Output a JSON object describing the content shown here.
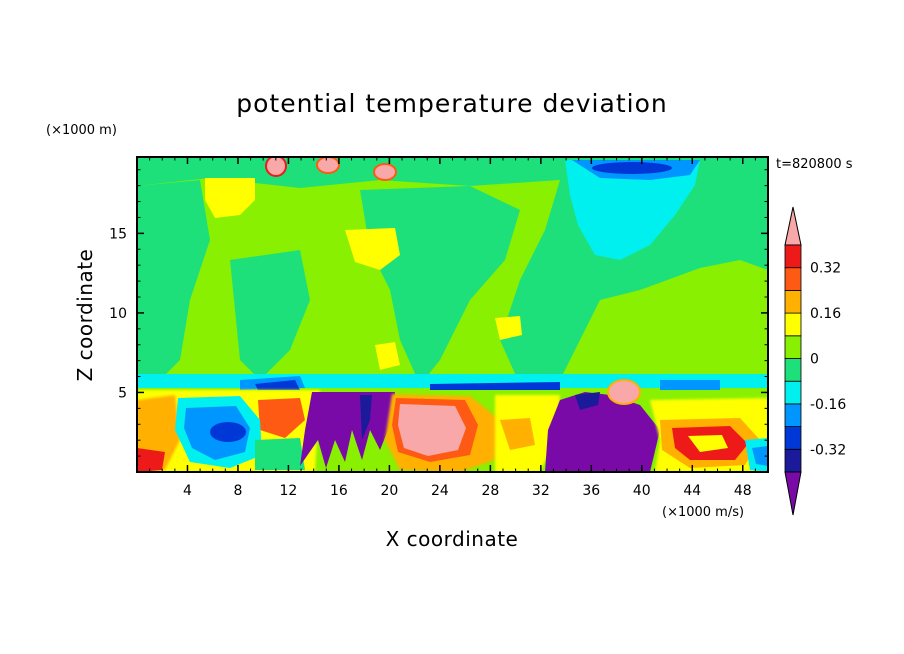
{
  "chart_data": {
    "type": "heatmap",
    "title": "potential temperature deviation",
    "xlabel": "X coordinate",
    "ylabel": "Z coordinate",
    "x_unit": "(×1000 m/s)",
    "y_unit": "(×1000 m)",
    "time_label": "t=820800 s",
    "xlim": [
      0,
      50
    ],
    "ylim": [
      0,
      19.8
    ],
    "x_ticks": [
      "4",
      "8",
      "12",
      "16",
      "20",
      "24",
      "28",
      "32",
      "36",
      "40",
      "44",
      "48"
    ],
    "y_ticks": [
      "5",
      "10",
      "15"
    ],
    "colorbar": {
      "levels": [
        -0.4,
        -0.32,
        -0.24,
        -0.16,
        -0.08,
        0,
        0.08,
        0.16,
        0.24,
        0.32,
        0.4
      ],
      "colors": [
        "#7a0aa8",
        "#1a1a9a",
        "#0038d8",
        "#0096ff",
        "#00f0f0",
        "#1ee07a",
        "#88f000",
        "#ffff00",
        "#ffb000",
        "#ff5a14",
        "#ee1a1a",
        "#f8a8a8"
      ],
      "tick_labels": [
        "0.32",
        "0.16",
        "0",
        "-0.16",
        "-0.32"
      ],
      "tick_values": [
        0.32,
        0.16,
        0,
        -0.16,
        -0.32
      ]
    }
  }
}
